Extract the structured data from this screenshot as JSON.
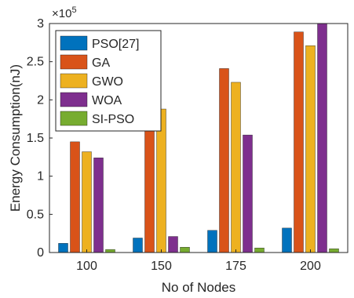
{
  "chart_data": {
    "type": "bar",
    "title": "",
    "xlabel": "No of Nodes",
    "ylabel": "Energy Consumption(nJ)",
    "exponent_label": "×10",
    "exponent_power": "5",
    "scale_multiplier": 100000,
    "categories": [
      "100",
      "150",
      "175",
      "200"
    ],
    "ylim": [
      0,
      3
    ],
    "yticks": [
      0,
      0.5,
      1,
      1.5,
      2,
      2.5,
      3
    ],
    "ytick_labels": [
      "0",
      "0.5",
      "1",
      "1.5",
      "2",
      "2.5",
      "3"
    ],
    "legend_position": "top-left",
    "grid": false,
    "series": [
      {
        "name": "PSO[27]",
        "color": "#0072BD",
        "values": [
          0.12,
          0.19,
          0.29,
          0.32
        ]
      },
      {
        "name": "GA",
        "color": "#D95319",
        "values": [
          1.45,
          2.17,
          2.41,
          2.89
        ]
      },
      {
        "name": "GWO",
        "color": "#EDB120",
        "values": [
          1.32,
          1.88,
          2.23,
          2.71
        ]
      },
      {
        "name": "WOA",
        "color": "#7E2F8E",
        "values": [
          1.24,
          0.21,
          1.54,
          3.0
        ]
      },
      {
        "name": "SI-PSO",
        "color": "#77AC30",
        "values": [
          0.04,
          0.07,
          0.06,
          0.05
        ]
      }
    ]
  }
}
